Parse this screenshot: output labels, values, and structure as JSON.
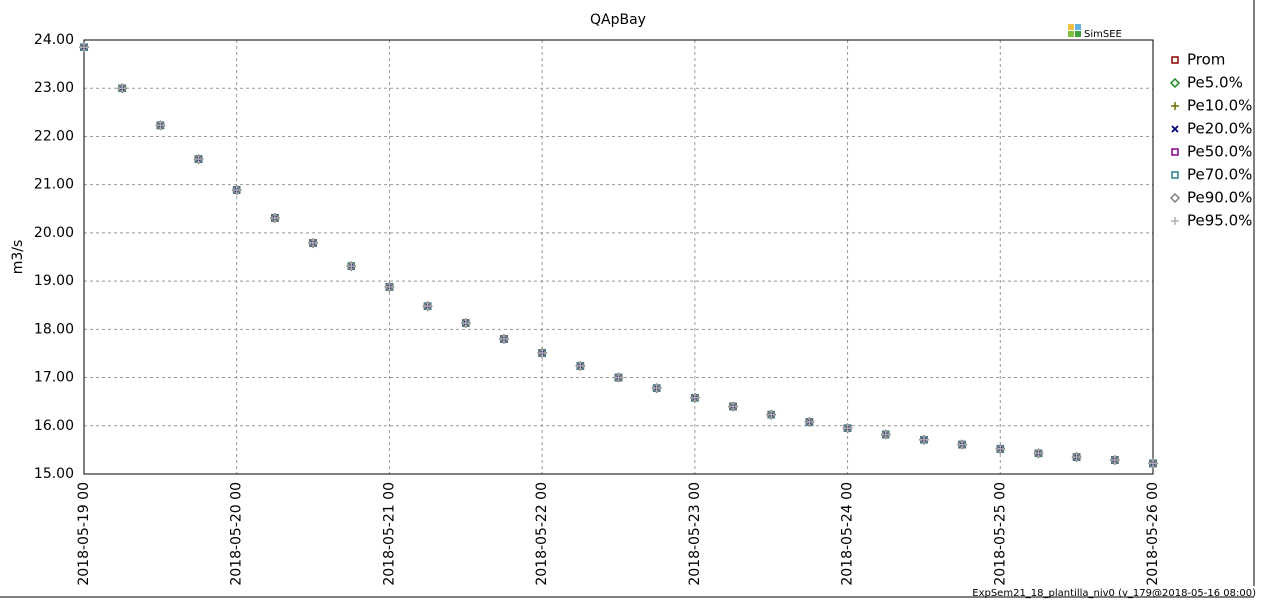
{
  "chart_data": {
    "type": "scatter",
    "title": "QApBay",
    "y_label": "m3/s",
    "logo": "SimSEE",
    "footer": "ExpSem21_18_plantilla_niv0 (v_179@2018-05-16 08:00)",
    "x": [
      "2018-05-19 00",
      "2018-05-19 06",
      "2018-05-19 12",
      "2018-05-19 18",
      "2018-05-20 00",
      "2018-05-20 06",
      "2018-05-20 12",
      "2018-05-20 18",
      "2018-05-21 00",
      "2018-05-21 06",
      "2018-05-21 12",
      "2018-05-21 18",
      "2018-05-22 00",
      "2018-05-22 06",
      "2018-05-22 12",
      "2018-05-22 18",
      "2018-05-23 00",
      "2018-05-23 06",
      "2018-05-23 12",
      "2018-05-23 18",
      "2018-05-24 00",
      "2018-05-24 06",
      "2018-05-24 12",
      "2018-05-24 18",
      "2018-05-25 00",
      "2018-05-25 06",
      "2018-05-25 12",
      "2018-05-25 18",
      "2018-05-26 00"
    ],
    "series": [
      {
        "name": "Prom",
        "color": "#8b0000",
        "marker": "square",
        "values": [
          23.85,
          23.0,
          22.23,
          21.53,
          20.89,
          20.31,
          19.79,
          19.31,
          18.88,
          18.48,
          18.13,
          17.8,
          17.51,
          17.24,
          17.0,
          16.78,
          16.58,
          16.4,
          16.23,
          16.08,
          15.95,
          15.82,
          15.71,
          15.61,
          15.52,
          15.43,
          15.35,
          15.29,
          15.22
        ]
      },
      {
        "name": "Pe5.0%",
        "color": "#1a8a1a",
        "marker": "diamond",
        "values": [
          23.85,
          23.0,
          22.23,
          21.53,
          20.89,
          20.31,
          19.79,
          19.31,
          18.88,
          18.48,
          18.13,
          17.8,
          17.51,
          17.24,
          17.0,
          16.78,
          16.58,
          16.4,
          16.23,
          16.08,
          15.95,
          15.82,
          15.71,
          15.61,
          15.52,
          15.43,
          15.35,
          15.29,
          15.22
        ]
      },
      {
        "name": "Pe10.0%",
        "color": "#6b6b00",
        "marker": "plus",
        "values": [
          23.85,
          23.0,
          22.23,
          21.53,
          20.89,
          20.31,
          19.79,
          19.31,
          18.88,
          18.48,
          18.13,
          17.8,
          17.51,
          17.24,
          17.0,
          16.78,
          16.58,
          16.4,
          16.23,
          16.08,
          15.95,
          15.82,
          15.71,
          15.61,
          15.52,
          15.43,
          15.35,
          15.29,
          15.22
        ]
      },
      {
        "name": "Pe20.0%",
        "color": "#000080",
        "marker": "cross",
        "values": [
          23.85,
          23.0,
          22.23,
          21.53,
          20.89,
          20.31,
          19.79,
          19.31,
          18.88,
          18.48,
          18.13,
          17.8,
          17.51,
          17.24,
          17.0,
          16.78,
          16.58,
          16.4,
          16.23,
          16.08,
          15.95,
          15.82,
          15.71,
          15.61,
          15.52,
          15.43,
          15.35,
          15.29,
          15.22
        ]
      },
      {
        "name": "Pe50.0%",
        "color": "#8b008b",
        "marker": "square",
        "values": [
          23.85,
          23.0,
          22.23,
          21.53,
          20.89,
          20.31,
          19.79,
          19.31,
          18.88,
          18.48,
          18.13,
          17.8,
          17.51,
          17.24,
          17.0,
          16.78,
          16.58,
          16.4,
          16.23,
          16.08,
          15.95,
          15.82,
          15.71,
          15.61,
          15.52,
          15.43,
          15.35,
          15.29,
          15.22
        ]
      },
      {
        "name": "Pe70.0%",
        "color": "#2a7f8a",
        "marker": "square",
        "values": [
          23.85,
          23.0,
          22.23,
          21.53,
          20.89,
          20.31,
          19.79,
          19.31,
          18.88,
          18.48,
          18.13,
          17.8,
          17.51,
          17.24,
          17.0,
          16.78,
          16.58,
          16.4,
          16.23,
          16.08,
          15.95,
          15.82,
          15.71,
          15.61,
          15.52,
          15.43,
          15.35,
          15.29,
          15.22
        ]
      },
      {
        "name": "Pe90.0%",
        "color": "#808080",
        "marker": "diamond",
        "values": [
          23.85,
          23.0,
          22.23,
          21.53,
          20.89,
          20.31,
          19.79,
          19.31,
          18.88,
          18.48,
          18.13,
          17.8,
          17.51,
          17.24,
          17.0,
          16.78,
          16.58,
          16.4,
          16.23,
          16.08,
          15.95,
          15.82,
          15.71,
          15.61,
          15.52,
          15.43,
          15.35,
          15.29,
          15.22
        ]
      },
      {
        "name": "Pe95.0%",
        "color": "#b0b0b0",
        "marker": "plus",
        "values": [
          23.85,
          23.0,
          22.23,
          21.53,
          20.89,
          20.31,
          19.79,
          19.31,
          18.88,
          18.48,
          18.13,
          17.8,
          17.51,
          17.24,
          17.0,
          16.78,
          16.58,
          16.4,
          16.23,
          16.08,
          15.95,
          15.82,
          15.71,
          15.61,
          15.52,
          15.43,
          15.35,
          15.29,
          15.22
        ]
      }
    ],
    "xlim": [
      "2018-05-19 00",
      "2018-05-26 00"
    ],
    "xticks": [
      "2018-05-19 00",
      "2018-05-20 00",
      "2018-05-21 00",
      "2018-05-22 00",
      "2018-05-23 00",
      "2018-05-24 00",
      "2018-05-25 00",
      "2018-05-26 00"
    ],
    "ylim": [
      15,
      24
    ],
    "yticks": [
      {
        "value": 15,
        "label": "15.00"
      },
      {
        "value": 16,
        "label": "16.00"
      },
      {
        "value": 17,
        "label": "17.00"
      },
      {
        "value": 18,
        "label": "18.00"
      },
      {
        "value": 19,
        "label": "19.00"
      },
      {
        "value": 20,
        "label": "20.00"
      },
      {
        "value": 21,
        "label": "21.00"
      },
      {
        "value": 22,
        "label": "22.00"
      },
      {
        "value": 23,
        "label": "23.00"
      },
      {
        "value": 24,
        "label": "24.00"
      }
    ],
    "grid": true,
    "legend": "right"
  }
}
